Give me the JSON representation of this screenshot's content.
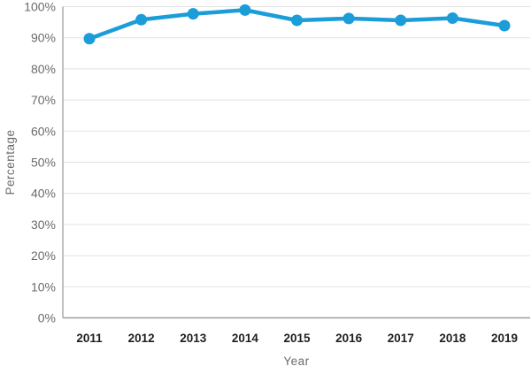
{
  "chart_data": {
    "type": "line",
    "xlabel": "Year",
    "ylabel": "Percentage",
    "categories": [
      "2011",
      "2012",
      "2013",
      "2014",
      "2015",
      "2016",
      "2017",
      "2018",
      "2019"
    ],
    "series": [
      {
        "name": "Percentage",
        "values": [
          89.7,
          95.8,
          97.7,
          98.9,
          95.6,
          96.2,
          95.6,
          96.3,
          93.9
        ]
      }
    ],
    "ylim": [
      0,
      100
    ],
    "ytick_step": 10,
    "ytick_labels": [
      "0%",
      "10%",
      "20%",
      "30%",
      "40%",
      "50%",
      "60%",
      "70%",
      "80%",
      "90%",
      "100%"
    ],
    "grid": true,
    "legend": "none",
    "colors": {
      "line": "#1b9dd9",
      "point": "#1b9dd9",
      "gridline": "#e2e2e2",
      "axis": "#9e9e9e",
      "x_tick_label": "#1f1f1f",
      "y_tick_label": "#6b6b6b",
      "axis_title": "#6b6b6b",
      "background": "#ffffff"
    }
  }
}
